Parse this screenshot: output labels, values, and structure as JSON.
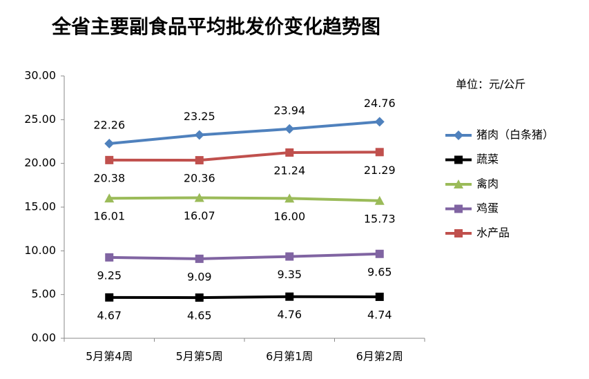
{
  "chart_data": {
    "type": "line",
    "title": "全省主要副食品平均批发价变化趋势图",
    "annotation": "单位：元/公斤",
    "categories": [
      "5月第4周",
      "5月第5周",
      "6月第1周",
      "6月第2周"
    ],
    "series": [
      {
        "name": "猪肉（白条猪）",
        "color": "#4f81bd",
        "marker": "diamond",
        "label_position": "above",
        "values": [
          22.26,
          23.25,
          23.94,
          24.76
        ]
      },
      {
        "name": "蔬菜",
        "color": "#000000",
        "marker": "square",
        "label_position": "below",
        "values": [
          4.67,
          4.65,
          4.76,
          4.74
        ]
      },
      {
        "name": "禽肉",
        "color": "#9bbb59",
        "marker": "triangle",
        "label_position": "below",
        "values": [
          16.01,
          16.07,
          16,
          15.73
        ],
        "value_labels": [
          "16.01",
          "16.07",
          "16.00",
          "15.73"
        ]
      },
      {
        "name": "鸡蛋",
        "color": "#8064a2",
        "marker": "square",
        "label_position": "below",
        "values": [
          9.25,
          9.09,
          9.35,
          9.65
        ]
      },
      {
        "name": "水产品",
        "color": "#c0504d",
        "marker": "square",
        "label_position": "below",
        "values": [
          20.38,
          20.36,
          21.24,
          21.29
        ]
      }
    ],
    "ylim": [
      0,
      30
    ],
    "yticks": [
      {
        "value": 0,
        "label": "0.00"
      },
      {
        "value": 5,
        "label": "5.00"
      },
      {
        "value": 10,
        "label": "10.00"
      },
      {
        "value": 15,
        "label": "15.00"
      },
      {
        "value": 20,
        "label": "20.00"
      },
      {
        "value": 25,
        "label": "25.00"
      },
      {
        "value": 30,
        "label": "30.00"
      }
    ],
    "grid": false
  }
}
